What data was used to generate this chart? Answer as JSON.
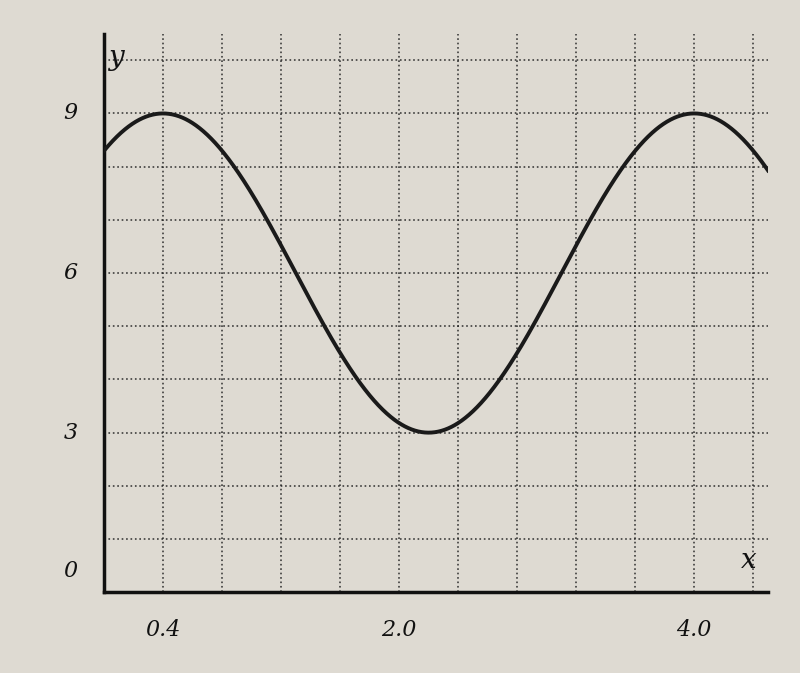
{
  "title": "",
  "xlabel": "x",
  "ylabel": "y",
  "xlim": [
    0,
    4.5
  ],
  "ylim": [
    0,
    10.5
  ],
  "xticks": [
    0.4,
    2.0,
    4.0
  ],
  "yticks": [
    3,
    6,
    9
  ],
  "y_origin_label": "0",
  "bg_color": "#dedad2",
  "plot_bg_color": "#dedad2",
  "curve_color": "#1a1a1a",
  "curve_linewidth": 2.8,
  "amplitude": 3,
  "midline": 6,
  "period": 3.6,
  "phase_shift": 0.4,
  "x_start": 0.0,
  "x_end": 4.5,
  "grid_color": "#222222",
  "grid_linestyle": ":",
  "grid_linewidth": 1.2,
  "axis_color": "#111111",
  "tick_fontsize": 16,
  "label_fontsize": 20,
  "major_grid_x": [
    0.4,
    0.8,
    1.2,
    1.6,
    2.0,
    2.4,
    2.8,
    3.2,
    3.6,
    4.0,
    4.4
  ],
  "major_grid_y": [
    1,
    2,
    3,
    4,
    5,
    6,
    7,
    8,
    9,
    10
  ]
}
